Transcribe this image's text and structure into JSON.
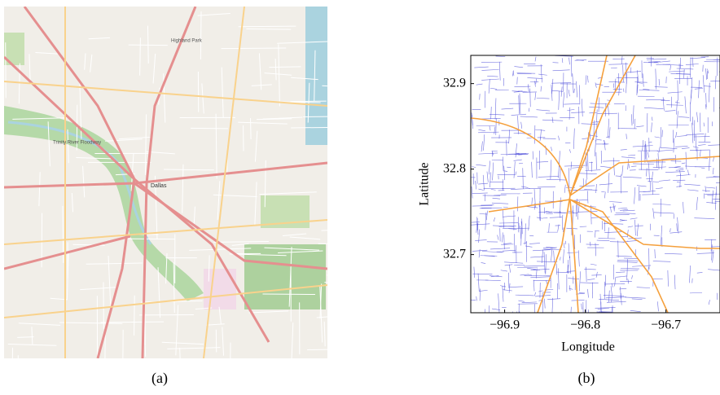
{
  "figure_a": {
    "caption": "(a)",
    "map_labels": [
      "Highland Park",
      "Trinity River Floodway",
      "Dallas"
    ]
  },
  "chart_data": {
    "type": "road-network",
    "caption": "(b)",
    "xlabel": "Longitude",
    "ylabel": "Latitude",
    "xlim": [
      -96.942,
      -96.633
    ],
    "ylim": [
      32.632,
      32.933
    ],
    "xticks": [
      {
        "value": -96.9,
        "label": "−96.9"
      },
      {
        "value": -96.8,
        "label": "−96.8"
      },
      {
        "value": -96.7,
        "label": "−96.7"
      }
    ],
    "yticks": [
      32.7,
      32.8,
      32.9
    ],
    "street_color": "#4d4dd9",
    "highway_color": "#f5a03c"
  }
}
